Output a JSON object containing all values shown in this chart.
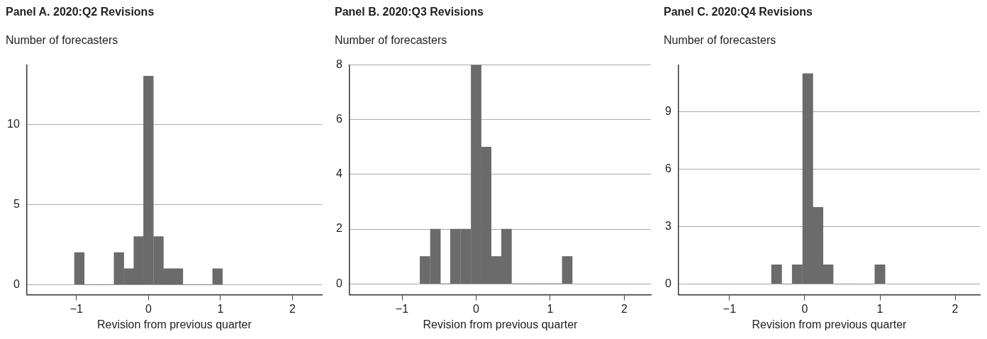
{
  "chart_data": [
    {
      "type": "histogram",
      "title": "Panel A. 2020:Q2 Revisions",
      "subtitle": "Number of forecasters",
      "xlabel": "Revision from previous quarter",
      "color": "#6b6b6b",
      "bins": [
        -1.03,
        -0.89,
        -0.76,
        -0.62,
        -0.48,
        -0.34,
        -0.2,
        -0.07,
        0.07,
        0.21,
        0.34,
        0.48,
        0.62,
        0.75,
        0.89,
        1.03
      ],
      "values": [
        2,
        0,
        0,
        0,
        2,
        1,
        3,
        13,
        3,
        1,
        1,
        0,
        0,
        0,
        1
      ],
      "xlim": [
        -1.69,
        2.41
      ],
      "ylim": [
        -0.63,
        13.7
      ],
      "xticks": [
        -1,
        0,
        1,
        2
      ],
      "yticks": [
        0,
        5,
        10
      ],
      "grid": "y"
    },
    {
      "type": "histogram",
      "title": "Panel B. 2020:Q3 Revisions",
      "subtitle": "Number of forecasters",
      "xlabel": "Revision from previous quarter",
      "color": "#6b6b6b",
      "bins": [
        -0.76,
        -0.62,
        -0.48,
        -0.35,
        -0.21,
        -0.07,
        0.07,
        0.2,
        0.34,
        0.48,
        0.62,
        0.75,
        0.89,
        1.03,
        1.16,
        1.3
      ],
      "values": [
        1,
        2,
        0,
        2,
        2,
        8,
        5,
        1,
        2,
        0,
        0,
        0,
        0,
        0,
        1
      ],
      "xlim": [
        -1.71,
        2.36
      ],
      "ylim": [
        -0.4,
        8
      ],
      "xticks": [
        -1,
        0,
        1,
        2
      ],
      "yticks": [
        0,
        2,
        4,
        6,
        8
      ],
      "grid": "y"
    },
    {
      "type": "histogram",
      "title": "Panel C. 2020:Q4 Revisions",
      "subtitle": "Number of forecasters",
      "xlabel": "Revision from previous quarter",
      "color": "#6b6b6b",
      "bins": [
        -0.44,
        -0.31,
        -0.17,
        -0.03,
        0.11,
        0.24,
        0.38,
        0.52,
        0.65,
        0.79,
        0.93,
        1.07
      ],
      "values": [
        1,
        0,
        1,
        11,
        4,
        1,
        0,
        0,
        0,
        0,
        1
      ],
      "xlim": [
        -1.68,
        2.33
      ],
      "ylim": [
        -0.57,
        11.45
      ],
      "xticks": [
        -1,
        0,
        1,
        2
      ],
      "yticks": [
        0,
        3,
        6,
        9
      ],
      "grid": "y"
    }
  ]
}
